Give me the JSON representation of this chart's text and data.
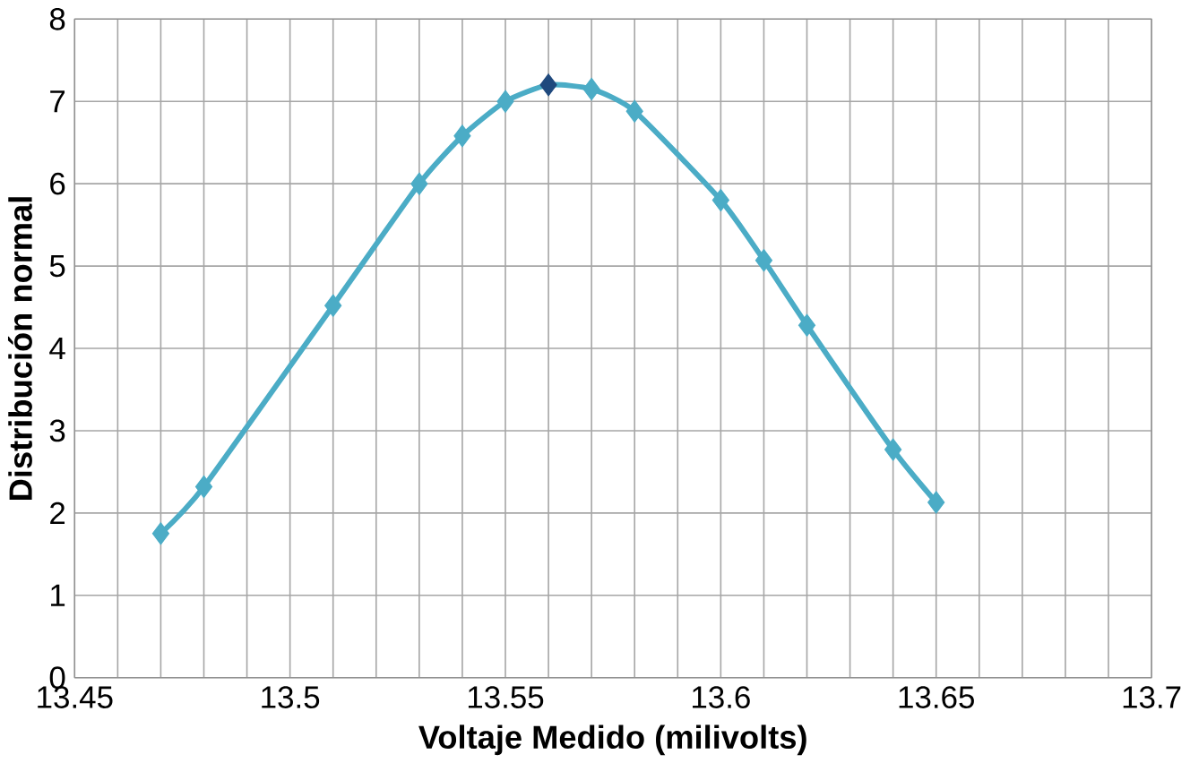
{
  "chart_data": {
    "type": "line",
    "xlabel": "Voltaje Medido (milivolts)",
    "ylabel": "Distribución normal",
    "x": [
      13.47,
      13.48,
      13.51,
      13.53,
      13.54,
      13.55,
      13.56,
      13.57,
      13.58,
      13.6,
      13.61,
      13.62,
      13.64,
      13.65
    ],
    "series": [
      {
        "color": "#4bacc6",
        "values": [
          1.75,
          2.32,
          4.52,
          6.0,
          6.58,
          7.0,
          7.2,
          7.15,
          6.88,
          5.8,
          5.07,
          4.28,
          2.77,
          2.13
        ],
        "colors": [
          "#4bacc6",
          "#4bacc6",
          "#4bacc6",
          "#4bacc6",
          "#4bacc6",
          "#4bacc6",
          "#1f497d",
          "#4bacc6",
          "#4bacc6",
          "#4bacc6",
          "#4bacc6",
          "#4bacc6",
          "#4bacc6",
          "#4bacc6"
        ]
      }
    ],
    "xlim": [
      13.45,
      13.7
    ],
    "xticks": [
      13.45,
      13.5,
      13.55,
      13.6,
      13.65,
      13.7
    ],
    "ylim": [
      0,
      8
    ],
    "yticks": [
      0,
      1,
      2,
      3,
      4,
      5,
      6,
      7,
      8
    ],
    "grid": true,
    "marker": "diamond",
    "line_style": "solid"
  }
}
